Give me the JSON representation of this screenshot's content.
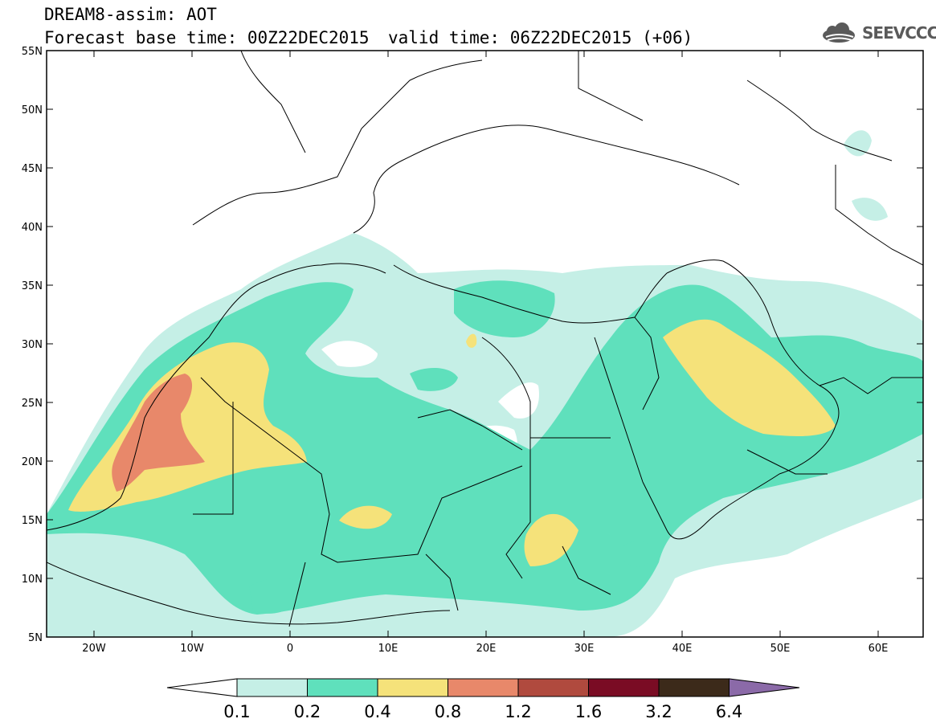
{
  "header": {
    "title": "DREAM8-assim: AOT",
    "base_time": "Forecast base time: 00Z22DEC2015",
    "valid_time": "valid time: 06Z22DEC2015 (+06)",
    "logo_text": "SEEVCCC"
  },
  "map": {
    "lat_labels": [
      "55N",
      "50N",
      "45N",
      "40N",
      "35N",
      "30N",
      "25N",
      "20N",
      "15N",
      "10N",
      "5N"
    ],
    "lon_labels": [
      "20W",
      "10W",
      "0",
      "10E",
      "20E",
      "30E",
      "40E",
      "50E",
      "60E"
    ]
  },
  "legend": {
    "labels": [
      "0.1",
      "0.2",
      "0.4",
      "0.8",
      "1.2",
      "1.6",
      "3.2",
      "6.4"
    ],
    "colors": [
      "#ffffff",
      "#c5efe6",
      "#5fe0bc",
      "#f5e27a",
      "#e8886a",
      "#b04a3e",
      "#7a0c24",
      "#3c2a1a",
      "#8b6aa8"
    ]
  }
}
